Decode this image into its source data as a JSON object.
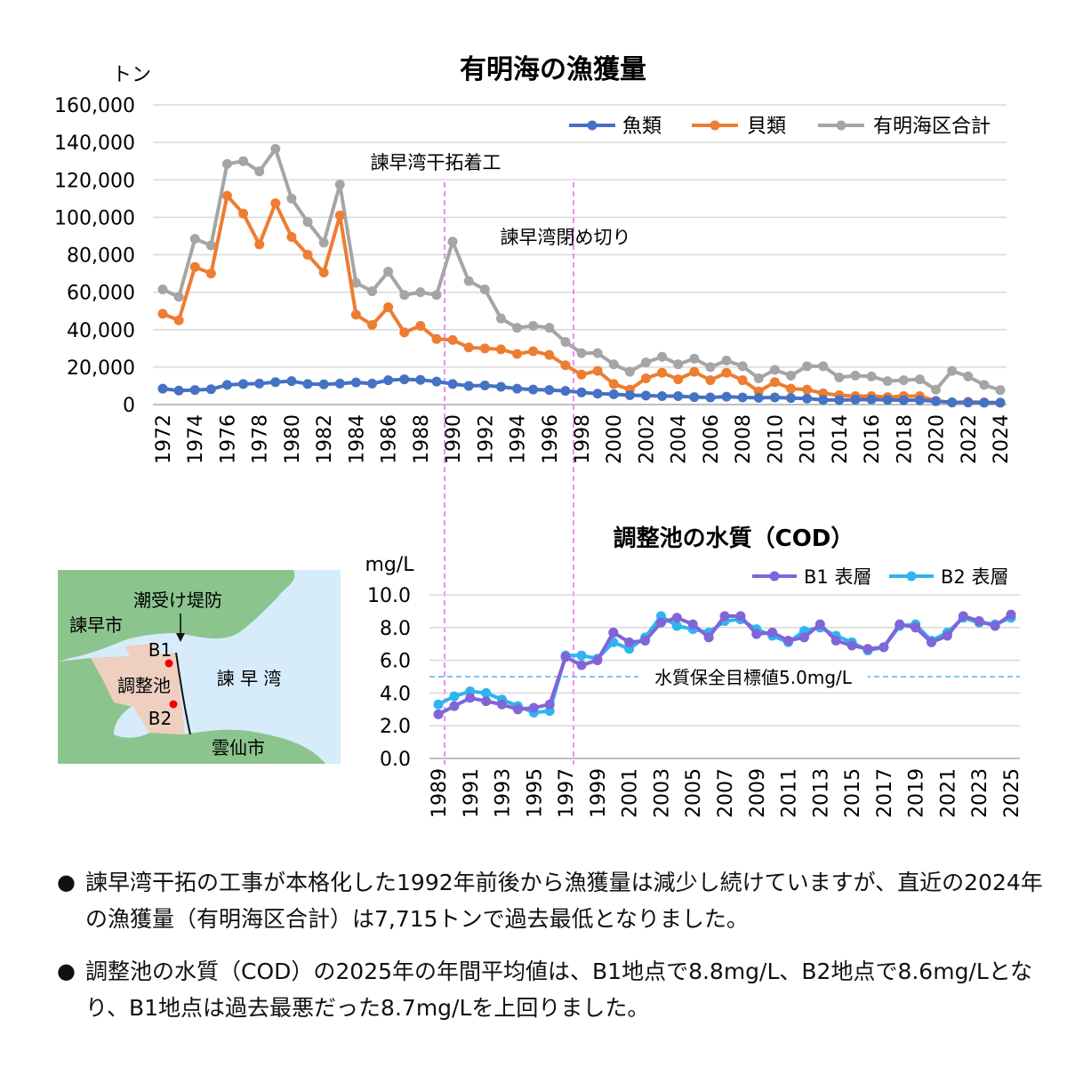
{
  "colors": {
    "fish": "#4472C4",
    "shell": "#ED7D31",
    "total": "#A5A5A5",
    "b1": "#8064D8",
    "b2": "#2FB4F0",
    "marker": "#EE66EE",
    "target": "#5AB4E6",
    "sea": "#D6ECFA",
    "land": "#8CC48E",
    "pond": "#EECFC0"
  },
  "chart_data": [
    {
      "type": "line",
      "title": "有明海の漁獲量",
      "ylabel": "トン",
      "ylim": [
        0,
        160000
      ],
      "yticks": [
        "0",
        "20,000",
        "40,000",
        "60,000",
        "80,000",
        "100,000",
        "120,000",
        "140,000",
        "160,000"
      ],
      "xlabels": [
        "1972",
        "1974",
        "1976",
        "1978",
        "1980",
        "1982",
        "1984",
        "1986",
        "1988",
        "1990",
        "1992",
        "1994",
        "1996",
        "1998",
        "2000",
        "2002",
        "2004",
        "2006",
        "2008",
        "2010",
        "2012",
        "2014",
        "2016",
        "2018",
        "2020",
        "2022",
        "2024"
      ],
      "x": [
        1972,
        1973,
        1974,
        1975,
        1976,
        1977,
        1978,
        1979,
        1980,
        1981,
        1982,
        1983,
        1984,
        1985,
        1986,
        1987,
        1988,
        1989,
        1990,
        1991,
        1992,
        1993,
        1994,
        1995,
        1996,
        1997,
        1998,
        1999,
        2000,
        2001,
        2002,
        2003,
        2004,
        2005,
        2006,
        2007,
        2008,
        2009,
        2010,
        2011,
        2012,
        2013,
        2014,
        2015,
        2016,
        2017,
        2018,
        2019,
        2020,
        2021,
        2022,
        2023,
        2024
      ],
      "legend_position": "top-right",
      "series": [
        {
          "name": "魚類",
          "values": [
            8500,
            7500,
            7800,
            8200,
            10500,
            11000,
            11200,
            12000,
            12500,
            11000,
            10800,
            11200,
            11800,
            11200,
            13000,
            13500,
            13200,
            12300,
            11000,
            10000,
            10200,
            9500,
            8500,
            8000,
            7800,
            7300,
            6500,
            5800,
            5500,
            5000,
            4800,
            4500,
            4500,
            4000,
            3800,
            4200,
            3800,
            3600,
            3800,
            3500,
            3200,
            2500,
            2400,
            2600,
            2700,
            2500,
            2300,
            2300,
            1800,
            1200,
            1100,
            1000,
            1000
          ]
        },
        {
          "name": "貝類",
          "values": [
            48500,
            45000,
            73500,
            70000,
            111500,
            102000,
            85500,
            107500,
            89500,
            80000,
            70500,
            101000,
            48000,
            42500,
            52000,
            38500,
            42000,
            35000,
            34500,
            30500,
            30000,
            29500,
            27000,
            28500,
            26500,
            21000,
            16000,
            18000,
            11000,
            8000,
            14000,
            17000,
            13500,
            17500,
            13000,
            17000,
            13000,
            7000,
            12000,
            8500,
            8000,
            6000,
            5000,
            4500,
            4500,
            4000,
            4500,
            4500,
            2000,
            1000,
            1500,
            1200,
            1000
          ]
        },
        {
          "name": "有明海区合計",
          "values": [
            61500,
            57500,
            88500,
            85000,
            128500,
            130000,
            124500,
            136500,
            110000,
            97500,
            86500,
            117500,
            65000,
            60500,
            71000,
            58500,
            60000,
            58500,
            87000,
            66000,
            61500,
            46000,
            41000,
            42000,
            41000,
            33500,
            27500,
            27500,
            21500,
            17500,
            22500,
            25500,
            21500,
            24500,
            20000,
            23500,
            20500,
            14000,
            18500,
            15500,
            20500,
            20500,
            14500,
            15500,
            15000,
            12500,
            13000,
            13500,
            8000,
            18000,
            15000,
            10500,
            7715
          ]
        }
      ],
      "annotations": [
        "諫早湾干拓着工",
        "諫早湾閉め切り"
      ],
      "markers": [
        1989,
        1997
      ]
    },
    {
      "type": "line",
      "title": "調整池の水質（COD）",
      "ylabel": "mg/L",
      "ylim": [
        0,
        10
      ],
      "yticks": [
        "0.0",
        "2.0",
        "4.0",
        "6.0",
        "8.0",
        "10.0"
      ],
      "xlabels": [
        "1989",
        "1991",
        "1993",
        "1995",
        "1997",
        "1999",
        "2001",
        "2003",
        "2005",
        "2007",
        "2009",
        "2011",
        "2013",
        "2015",
        "2017",
        "2019",
        "2021",
        "2023",
        "2025"
      ],
      "x": [
        1989,
        1990,
        1991,
        1992,
        1993,
        1994,
        1995,
        1996,
        1997,
        1998,
        1999,
        2000,
        2001,
        2002,
        2003,
        2004,
        2005,
        2006,
        2007,
        2008,
        2009,
        2010,
        2011,
        2012,
        2013,
        2014,
        2015,
        2016,
        2017,
        2018,
        2019,
        2020,
        2021,
        2022,
        2023,
        2024,
        2025
      ],
      "legend_position": "top-right",
      "series": [
        {
          "name": "B1 表層",
          "values": [
            2.7,
            3.2,
            3.7,
            3.5,
            3.3,
            3.0,
            3.1,
            3.3,
            6.2,
            5.7,
            6.0,
            7.7,
            7.1,
            7.2,
            8.3,
            8.6,
            8.2,
            7.4,
            8.7,
            8.7,
            7.6,
            7.7,
            7.2,
            7.4,
            8.2,
            7.2,
            6.9,
            6.7,
            6.8,
            8.2,
            8.0,
            7.1,
            7.5,
            8.7,
            8.4,
            8.1,
            8.8
          ]
        },
        {
          "name": "B2 表層",
          "values": [
            3.3,
            3.8,
            4.1,
            4.0,
            3.6,
            3.2,
            2.8,
            2.9,
            6.3,
            6.3,
            6.1,
            7.1,
            6.7,
            7.4,
            8.7,
            8.1,
            7.9,
            7.7,
            8.4,
            8.5,
            7.9,
            7.5,
            7.1,
            7.8,
            8.0,
            7.5,
            7.1,
            6.6,
            6.8,
            8.1,
            8.2,
            7.2,
            7.7,
            8.6,
            8.3,
            8.2,
            8.6
          ]
        }
      ],
      "target_line": {
        "value": 5.0,
        "label": "水質保全目標値5.0mg/L"
      }
    }
  ],
  "map": {
    "places": [
      "諫早市",
      "潮受け堤防",
      "B1",
      "調整池",
      "B2",
      "諫 早 湾",
      "雲仙市"
    ]
  },
  "notes": [
    "諫早湾干拓の工事が本格化した1992年前後から漁獲量は減少し続けていますが、直近の2024年の漁獲量（有明海区合計）は7,715トンで過去最低となりました。",
    "調整池の水質（COD）の2025年の年間平均値は、B1地点で8.8mg/L、B2地点で8.6mg/Lとなり、B1地点は過去最悪だった8.7mg/Lを上回りました。"
  ],
  "bullet": "●"
}
